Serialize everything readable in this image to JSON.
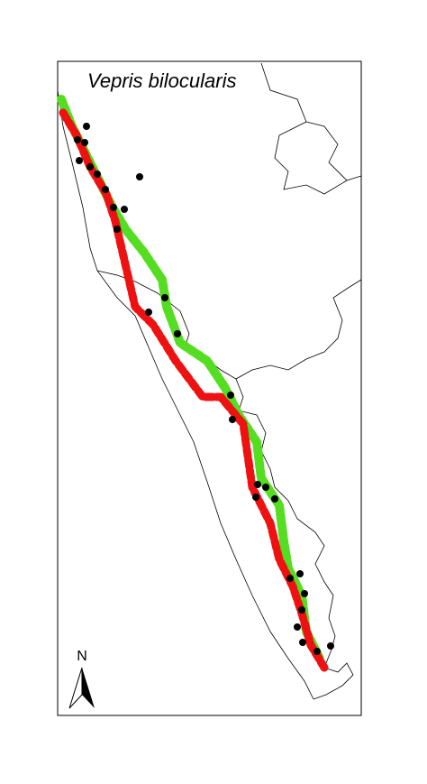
{
  "title": "Vepris bilocularis",
  "north_label": "N"
}
